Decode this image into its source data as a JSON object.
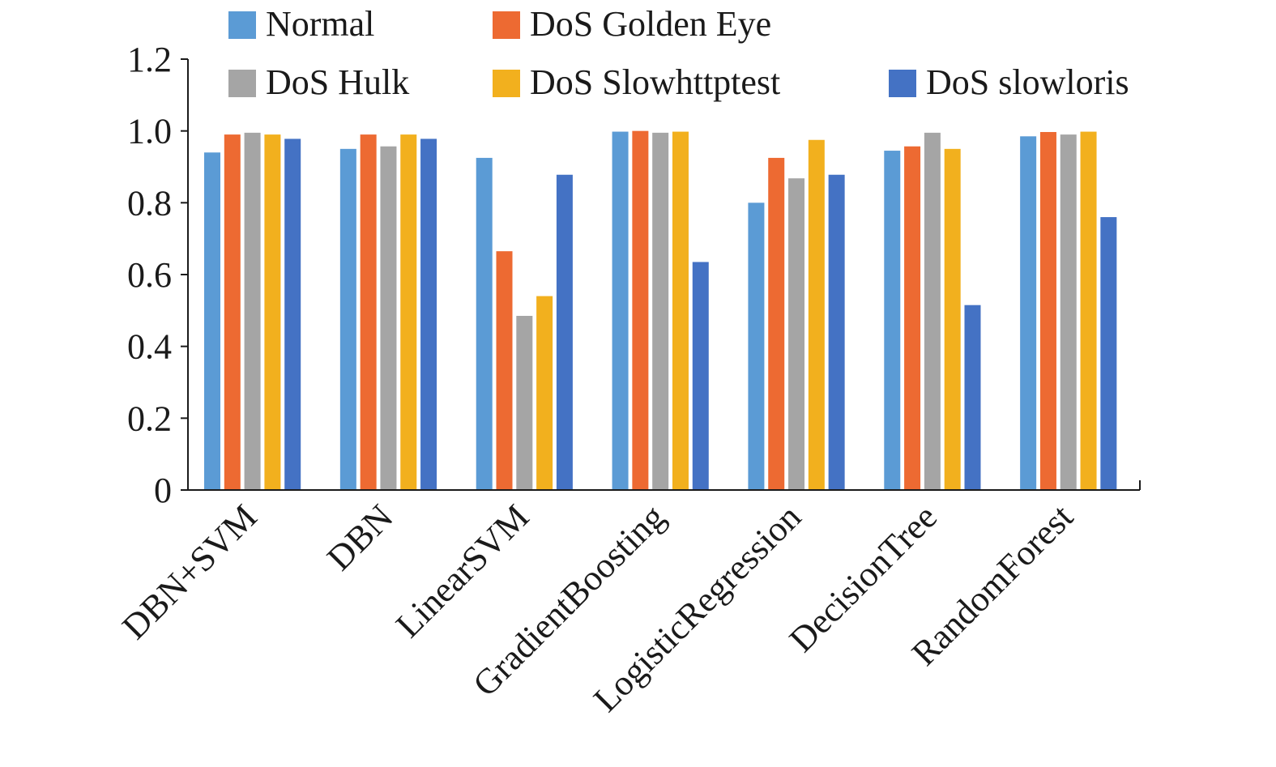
{
  "chart_data": {
    "type": "bar",
    "title": "",
    "xlabel": "",
    "ylabel": "",
    "ylim": [
      0,
      1.2
    ],
    "yticks": [
      "0",
      "0.2",
      "0.4",
      "0.6",
      "0.8",
      "1.0",
      "1.2"
    ],
    "grid": false,
    "legend_position": "top",
    "categories": [
      "DBN+SVM",
      "DBN",
      "LinearSVM",
      "GradientBoosting",
      "LogisticRegression",
      "DecisionTree",
      "RandomForest"
    ],
    "series": [
      {
        "name": "Normal",
        "color": "#5B9BD5",
        "values": [
          0.94,
          0.95,
          0.925,
          0.998,
          0.8,
          0.945,
          0.985
        ]
      },
      {
        "name": "DoS Golden Eye",
        "color": "#ED6A32",
        "values": [
          0.99,
          0.99,
          0.665,
          1.0,
          0.925,
          0.957,
          0.997
        ]
      },
      {
        "name": "DoS Hulk",
        "color": "#A5A5A5",
        "values": [
          0.995,
          0.957,
          0.485,
          0.995,
          0.868,
          0.995,
          0.99
        ]
      },
      {
        "name": "DoS Slowhttptest",
        "color": "#F2B01E",
        "values": [
          0.99,
          0.99,
          0.54,
          0.998,
          0.975,
          0.95,
          0.998
        ]
      },
      {
        "name": "DoS slowloris",
        "color": "#4472C4",
        "values": [
          0.978,
          0.978,
          0.878,
          0.635,
          0.878,
          0.515,
          0.76
        ]
      }
    ]
  }
}
